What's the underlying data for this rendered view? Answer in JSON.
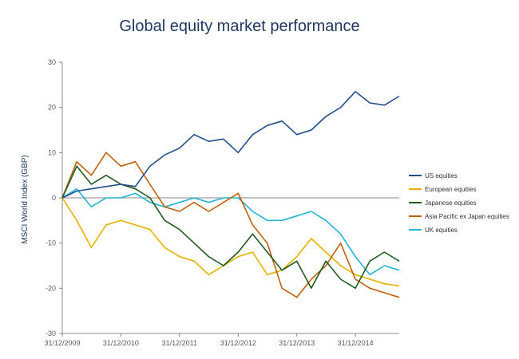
{
  "chart_data": {
    "type": "line",
    "title": "Global equity market performance",
    "xlabel": "",
    "ylabel": "MSCI World Index (GBP)",
    "ylim": [
      -30,
      30
    ],
    "yticks": [
      30,
      20,
      10,
      0,
      -10,
      -20,
      -30
    ],
    "xlim": [
      "2009-12-31",
      "2015-09-30"
    ],
    "xticks": [
      "31/12/2009",
      "31/12/2010",
      "31/12/2011",
      "31/12/2012",
      "31/12/2013",
      "31/12/2014"
    ],
    "grid": false,
    "legend": "right",
    "x": [
      "2009-12-31",
      "2010-03-31",
      "2010-06-30",
      "2010-09-30",
      "2010-12-31",
      "2011-03-31",
      "2011-06-30",
      "2011-09-30",
      "2011-12-31",
      "2012-03-31",
      "2012-06-30",
      "2012-09-30",
      "2012-12-31",
      "2013-03-31",
      "2013-06-30",
      "2013-09-30",
      "2013-12-31",
      "2014-03-31",
      "2014-06-30",
      "2014-09-30",
      "2014-12-31",
      "2015-03-31",
      "2015-06-30",
      "2015-09-30"
    ],
    "series": [
      {
        "name": "US equities",
        "color": "#1f4e8c",
        "values": [
          0,
          1.5,
          2,
          2.5,
          3,
          2.5,
          7,
          9.5,
          11,
          14,
          12.5,
          13,
          10,
          14,
          16,
          17,
          14,
          15,
          18,
          20,
          23.5,
          21,
          20.5,
          22.5
        ]
      },
      {
        "name": "European equities",
        "color": "#e8b000",
        "values": [
          0,
          -5,
          -11,
          -6,
          -5,
          -6,
          -7,
          -11,
          -13,
          -14,
          -17,
          -15,
          -13,
          -12,
          -17,
          -16,
          -13,
          -9,
          -12,
          -15,
          -17,
          -18,
          -19,
          -19.5
        ]
      },
      {
        "name": "Japanese equities",
        "color": "#1e5c1e",
        "values": [
          0,
          7,
          3,
          5,
          3,
          2,
          0,
          -5,
          -7,
          -10,
          -13,
          -15,
          -12,
          -8,
          -12,
          -16,
          -14,
          -20,
          -14,
          -18,
          -20,
          -14,
          -12,
          -14
        ]
      },
      {
        "name": "Asia Pacific ex Japan equities",
        "color": "#c0600a",
        "values": [
          0,
          8,
          5,
          10,
          7,
          8,
          3,
          -2,
          -3,
          -1,
          -3,
          -1,
          1,
          -6,
          -10,
          -20,
          -22,
          -18,
          -15,
          -10,
          -18,
          -20,
          -21,
          -22
        ]
      },
      {
        "name": "UK equities",
        "color": "#21b5d8",
        "values": [
          0,
          2,
          -2,
          0,
          0,
          1,
          -1,
          -2,
          -1,
          0,
          -1,
          0,
          0,
          -3,
          -5,
          -5,
          -4,
          -3,
          -5,
          -8,
          -13,
          -17,
          -15,
          -16
        ]
      }
    ]
  }
}
